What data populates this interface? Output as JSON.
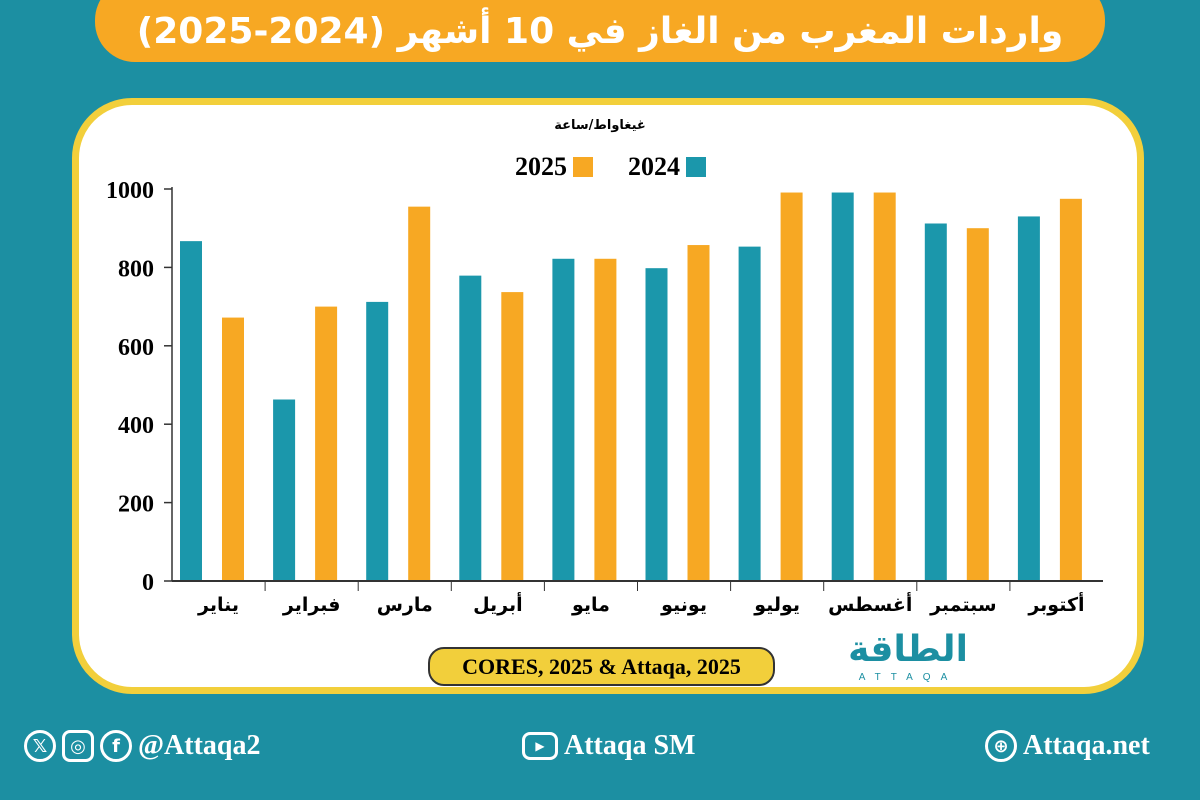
{
  "title": "واردات المغرب من الغاز في 10 أشهر (2024-2025)",
  "colors": {
    "background": "#1c8fa2",
    "series_2024": "#1b97ab",
    "series_2025": "#f7a823",
    "banner": "#f7a823",
    "card_border": "#f2cf3b"
  },
  "chart_data": {
    "type": "bar",
    "ylabel": "غيغاواط/ساعة",
    "ylim": [
      0,
      1000
    ],
    "yticks": [
      "0",
      "200",
      "400",
      "600",
      "800",
      "1000"
    ],
    "grid": false,
    "legend_position": "top",
    "categories": [
      "يناير",
      "فبراير",
      "مارس",
      "أبريل",
      "مايو",
      "يونيو",
      "يوليو",
      "أغسطس",
      "سبتمبر",
      "أكتوبر"
    ],
    "series": [
      {
        "name": "2024",
        "color": "#1b97ab",
        "values": [
          867,
          463,
          712,
          779,
          822,
          798,
          853,
          991,
          912,
          930
        ]
      },
      {
        "name": "2025",
        "color": "#f7a823",
        "values": [
          672,
          700,
          955,
          737,
          822,
          857,
          991,
          991,
          900,
          975
        ]
      }
    ]
  },
  "source": "CORES, 2025 & Attaqa, 2025",
  "logo": {
    "arabic": "الطاقة",
    "latin": "ATTAQA"
  },
  "footer": {
    "social_handle": "@Attaqa2",
    "youtube": "Attaqa SM",
    "website": "Attaqa.net"
  }
}
